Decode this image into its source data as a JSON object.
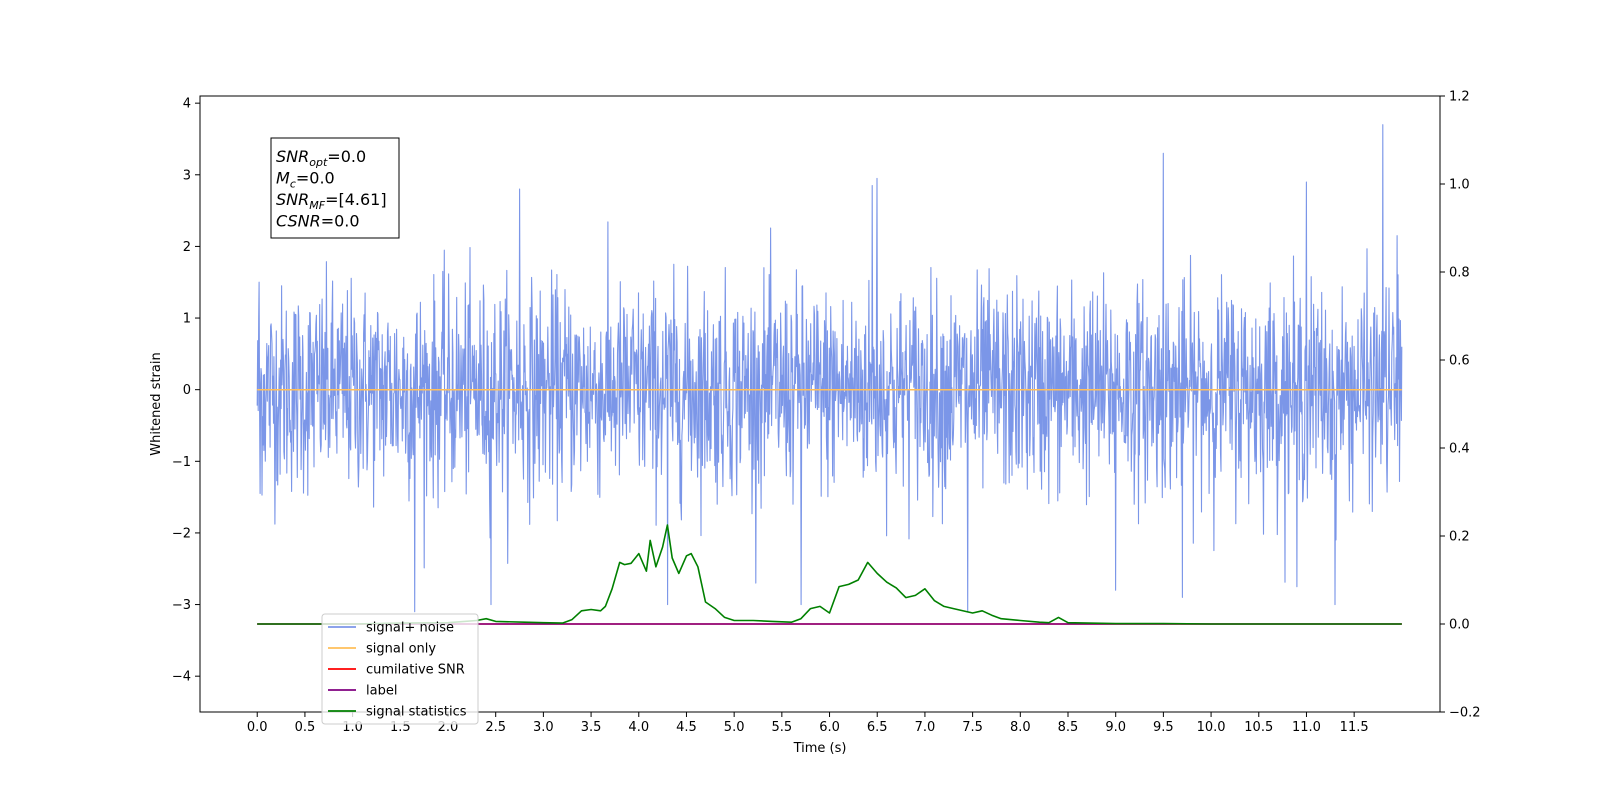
{
  "chart_data": {
    "type": "line",
    "xlabel": "Time (s)",
    "ylabel": "Whitened strain",
    "xlim": [
      -0.6,
      12.4
    ],
    "ylim": [
      -4.5,
      4.1
    ],
    "y2lim": [
      -0.2,
      1.2
    ],
    "x_ticks": [
      0.0,
      0.5,
      1.0,
      1.5,
      2.0,
      2.5,
      3.0,
      3.5,
      4.0,
      4.5,
      5.0,
      5.5,
      6.0,
      6.5,
      7.0,
      7.5,
      8.0,
      8.5,
      9.0,
      9.5,
      10.0,
      10.5,
      11.0,
      11.5
    ],
    "x_tick_labels": [
      "0.0",
      "0.5",
      "1.0",
      "1.5",
      "2.0",
      "2.5",
      "3.0",
      "3.5",
      "4.0",
      "4.5",
      "5.0",
      "5.5",
      "6.0",
      "6.5",
      "7.0",
      "7.5",
      "8.0",
      "8.5",
      "9.0",
      "9.5",
      "10.0",
      "10.5",
      "11.0",
      "11.5"
    ],
    "y_ticks": [
      -4,
      -3,
      -2,
      -1,
      0,
      1,
      2,
      3,
      4
    ],
    "y_tick_labels": [
      "−4",
      "−3",
      "−2",
      "−1",
      "0",
      "1",
      "2",
      "3",
      "4"
    ],
    "y2_ticks": [
      -0.2,
      0.0,
      0.2,
      0.4,
      0.6,
      0.8,
      1.0,
      1.2
    ],
    "y2_tick_labels": [
      "−0.2",
      "0.0",
      "0.2",
      "0.4",
      "0.6",
      "0.8",
      "1.0",
      "1.2"
    ],
    "grid": false,
    "legend_position": "lower-left",
    "annotation": {
      "lines": [
        {
          "base": "SNR",
          "sub": "opt",
          "rest": "=0.0"
        },
        {
          "base": "M",
          "sub": "c",
          "rest": "=0.0"
        },
        {
          "base": "SNR",
          "sub": "MF",
          "rest": "=[4.61]"
        },
        {
          "base": "CSNR",
          "sub": "",
          "rest": "=0.0"
        }
      ]
    },
    "series": [
      {
        "name": "signal+ noise",
        "color": "#7b96e8",
        "axis": "left",
        "x_range": [
          0.0,
          12.0
        ],
        "amplitude_typical": 1.3,
        "peaks": [
          {
            "x": 0.02,
            "y": 1.5
          },
          {
            "x": 0.03,
            "y": -1.45
          },
          {
            "x": 1.65,
            "y": -3.1
          },
          {
            "x": 2.45,
            "y": -3.0
          },
          {
            "x": 2.75,
            "y": 2.8
          },
          {
            "x": 4.3,
            "y": -3.0
          },
          {
            "x": 5.7,
            "y": -3.0
          },
          {
            "x": 6.5,
            "y": 2.95
          },
          {
            "x": 6.45,
            "y": 2.85
          },
          {
            "x": 7.45,
            "y": -3.1
          },
          {
            "x": 9.5,
            "y": 3.3
          },
          {
            "x": 9.0,
            "y": -2.8
          },
          {
            "x": 9.7,
            "y": -2.9
          },
          {
            "x": 11.0,
            "y": 2.9
          },
          {
            "x": 11.3,
            "y": -3.0
          },
          {
            "x": 11.8,
            "y": 3.7
          },
          {
            "x": 11.95,
            "y": 2.15
          },
          {
            "x": 10.9,
            "y": -2.75
          }
        ]
      },
      {
        "name": "signal only",
        "color": "#ffbf5a",
        "axis": "left",
        "x": [
          0.0,
          12.0
        ],
        "y": [
          0.0,
          0.0
        ]
      },
      {
        "name": "cumilative SNR",
        "color": "#ff0000",
        "axis": "right",
        "x": [
          0.0,
          12.0
        ],
        "y": [
          0.0,
          0.0
        ]
      },
      {
        "name": "label",
        "color": "#800080",
        "axis": "right",
        "x": [
          0.0,
          12.0
        ],
        "y": [
          0.0,
          0.0
        ]
      },
      {
        "name": "signal statistics",
        "color": "#008000",
        "axis": "right",
        "x": [
          0.0,
          0.5,
          1.0,
          1.5,
          2.0,
          2.3,
          2.4,
          2.5,
          2.8,
          3.0,
          3.2,
          3.3,
          3.4,
          3.5,
          3.6,
          3.65,
          3.72,
          3.8,
          3.85,
          3.92,
          4.0,
          4.08,
          4.12,
          4.18,
          4.25,
          4.3,
          4.35,
          4.42,
          4.5,
          4.55,
          4.62,
          4.7,
          4.8,
          4.9,
          5.0,
          5.2,
          5.4,
          5.6,
          5.7,
          5.8,
          5.9,
          6.0,
          6.1,
          6.2,
          6.3,
          6.4,
          6.5,
          6.6,
          6.7,
          6.8,
          6.9,
          7.0,
          7.1,
          7.2,
          7.3,
          7.5,
          7.6,
          7.7,
          7.8,
          8.0,
          8.2,
          8.3,
          8.4,
          8.5,
          9.0,
          9.5,
          10.0,
          11.0,
          12.0
        ],
        "y": [
          0.0,
          0.0,
          0.0,
          0.002,
          0.003,
          0.008,
          0.012,
          0.006,
          0.004,
          0.003,
          0.002,
          0.01,
          0.03,
          0.033,
          0.03,
          0.04,
          0.08,
          0.14,
          0.135,
          0.138,
          0.16,
          0.12,
          0.19,
          0.13,
          0.175,
          0.225,
          0.15,
          0.115,
          0.155,
          0.16,
          0.13,
          0.05,
          0.035,
          0.015,
          0.008,
          0.008,
          0.006,
          0.004,
          0.012,
          0.035,
          0.04,
          0.025,
          0.085,
          0.09,
          0.1,
          0.14,
          0.115,
          0.095,
          0.082,
          0.06,
          0.065,
          0.08,
          0.053,
          0.04,
          0.035,
          0.025,
          0.03,
          0.02,
          0.012,
          0.008,
          0.004,
          0.003,
          0.015,
          0.003,
          0.001,
          0.001,
          0.0,
          0.0,
          0.0
        ]
      }
    ]
  }
}
